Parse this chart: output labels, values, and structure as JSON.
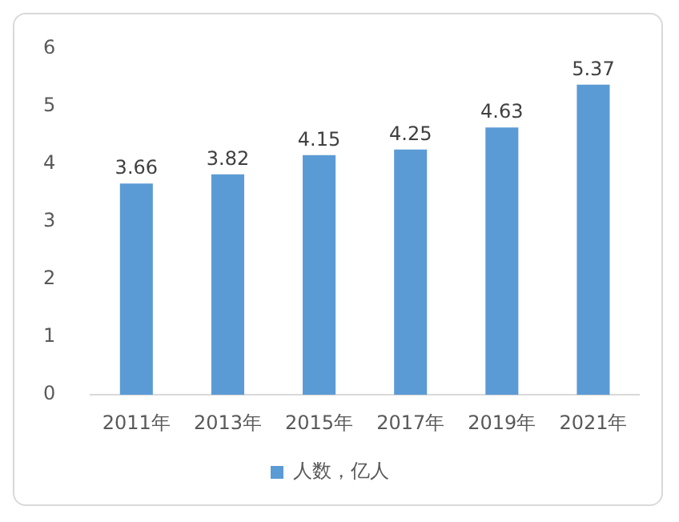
{
  "chart_data": {
    "type": "bar",
    "categories": [
      "2011年",
      "2013年",
      "2015年",
      "2017年",
      "2019年",
      "2021年"
    ],
    "series": [
      {
        "name": "人数，亿人",
        "color": "#5b9bd5",
        "values": [
          3.66,
          3.82,
          4.15,
          4.25,
          4.63,
          5.37
        ]
      }
    ],
    "ylim": [
      0,
      6
    ],
    "yticks": [
      0,
      1,
      2,
      3,
      4,
      5,
      6
    ],
    "grid": false,
    "legend": "bottom",
    "data_labels": true
  }
}
